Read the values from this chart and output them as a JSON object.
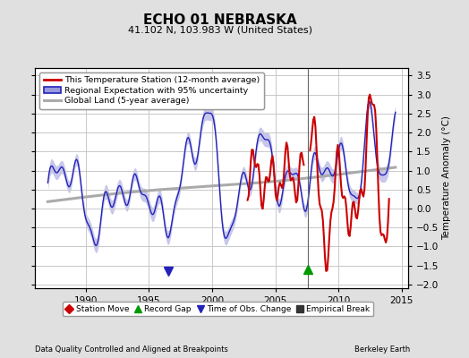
{
  "title": "ECHO 01 NEBRASKA",
  "subtitle": "41.102 N, 103.983 W (United States)",
  "ylabel": "Temperature Anomaly (°C)",
  "footer_left": "Data Quality Controlled and Aligned at Breakpoints",
  "footer_right": "Berkeley Earth",
  "xlim": [
    1986.0,
    2015.5
  ],
  "ylim": [
    -2.1,
    3.7
  ],
  "yticks": [
    -2,
    -1.5,
    -1,
    -0.5,
    0,
    0.5,
    1,
    1.5,
    2,
    2.5,
    3,
    3.5
  ],
  "xticks": [
    1990,
    1995,
    2000,
    2005,
    2010,
    2015
  ],
  "bg_color": "#e0e0e0",
  "plot_bg_color": "#ffffff",
  "grid_color": "#c8c8c8",
  "blue_line_color": "#2222bb",
  "blue_fill_color": "#9999dd",
  "red_line_color": "#cc0000",
  "gray_line_color": "#aaaaaa",
  "vertical_line_color": "#666666",
  "vertical_line_x": 2007.58,
  "obs_change_x": 1996.5,
  "record_gap_x": 2007.58,
  "legend2_items": [
    {
      "label": "Station Move",
      "color": "#cc0000",
      "marker": "D"
    },
    {
      "label": "Record Gap",
      "color": "#009900",
      "marker": "^"
    },
    {
      "label": "Time of Obs. Change",
      "color": "#2222bb",
      "marker": "v"
    },
    {
      "label": "Empirical Break",
      "color": "#333333",
      "marker": "s"
    }
  ]
}
